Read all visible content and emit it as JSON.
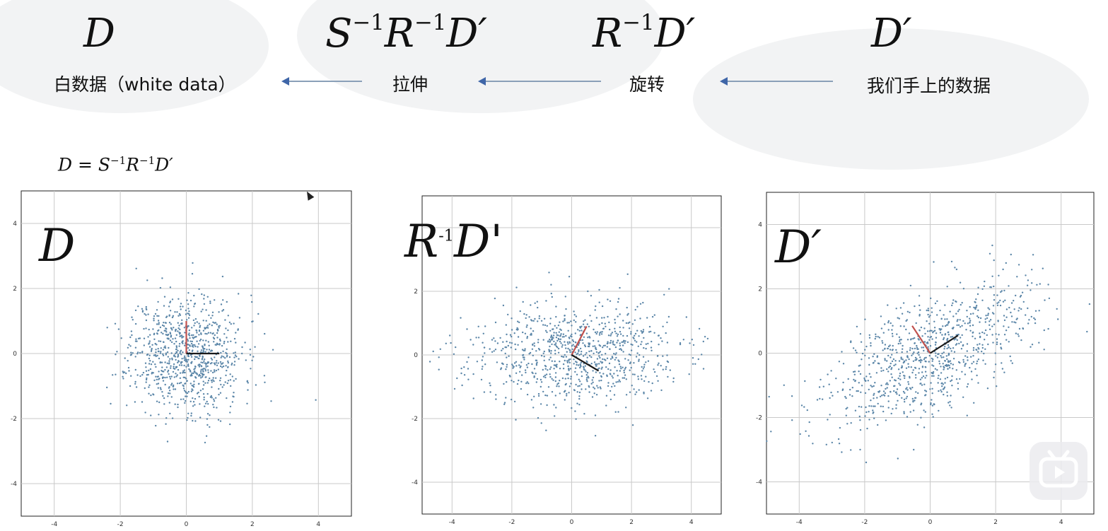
{
  "header": {
    "formulas": [
      {
        "base": "D",
        "parts": []
      },
      {
        "parts": [
          "S",
          "−1",
          "R",
          "−1",
          "D′"
        ]
      },
      {
        "parts": [
          "R",
          "−1",
          "D′"
        ]
      },
      {
        "base": "D′",
        "parts": []
      }
    ],
    "captions": {
      "white_data": "白数据（white data）",
      "stretch": "拉伸",
      "rotate": "旋转",
      "our_data": "我们手上的数据"
    },
    "equation": {
      "lhs": "D",
      "eq": "=",
      "s": "S",
      "s_exp": "−1",
      "r": "R",
      "r_exp": "−1",
      "d": "D′"
    }
  },
  "colors": {
    "points": "#5b86a8",
    "red_axis": "#c0504d",
    "black_axis": "#1a1a1a",
    "grid": "#c9c9c9",
    "arrow": "#3f66a8"
  },
  "icons": {
    "watermark": "bilibili-play-icon",
    "cursor": "mouse-cursor-icon"
  },
  "chart_data": [
    {
      "type": "scatter",
      "label": "D",
      "xlim": [
        -5,
        5
      ],
      "ylim": [
        -5,
        5
      ],
      "xticks": [
        -4,
        -2,
        0,
        2,
        4
      ],
      "yticks": [
        -4,
        -2,
        0,
        2,
        4
      ],
      "grid": true,
      "point_cloud": {
        "n": 900,
        "sx": 0.85,
        "sy": 0.9,
        "angle_deg": 0
      },
      "basis_vectors": [
        {
          "color": "red",
          "vector": [
            0.0,
            1.0
          ]
        },
        {
          "color": "black",
          "vector": [
            1.0,
            0.0
          ]
        }
      ]
    },
    {
      "type": "scatter",
      "label": "R-1 D'",
      "label_parts": {
        "base": "R",
        "exp": "-1",
        "rest": "D'"
      },
      "xlim": [
        -5,
        5
      ],
      "ylim": [
        -5,
        5
      ],
      "xticks": [
        -4,
        -2,
        0,
        2,
        4
      ],
      "yticks": [
        -4,
        -2,
        0,
        2,
        4
      ],
      "grid": true,
      "point_cloud": {
        "n": 900,
        "sx": 1.75,
        "sy": 0.8,
        "angle_deg": 0
      },
      "basis_vectors": [
        {
          "color": "red",
          "vector": [
            0.5,
            0.9
          ]
        },
        {
          "color": "black",
          "vector": [
            0.9,
            -0.5
          ]
        }
      ]
    },
    {
      "type": "scatter",
      "label": "D′",
      "xlim": [
        -5,
        5
      ],
      "ylim": [
        -5,
        5
      ],
      "xticks": [
        -4,
        -2,
        0,
        2,
        4
      ],
      "yticks": [
        -4,
        -2,
        0,
        2,
        4
      ],
      "grid": true,
      "point_cloud": {
        "n": 900,
        "sx": 1.75,
        "sy": 0.8,
        "angle_deg": 30
      },
      "basis_vectors": [
        {
          "color": "red",
          "vector": [
            -0.55,
            0.85
          ]
        },
        {
          "color": "black",
          "vector": [
            0.85,
            0.55
          ]
        }
      ]
    }
  ]
}
